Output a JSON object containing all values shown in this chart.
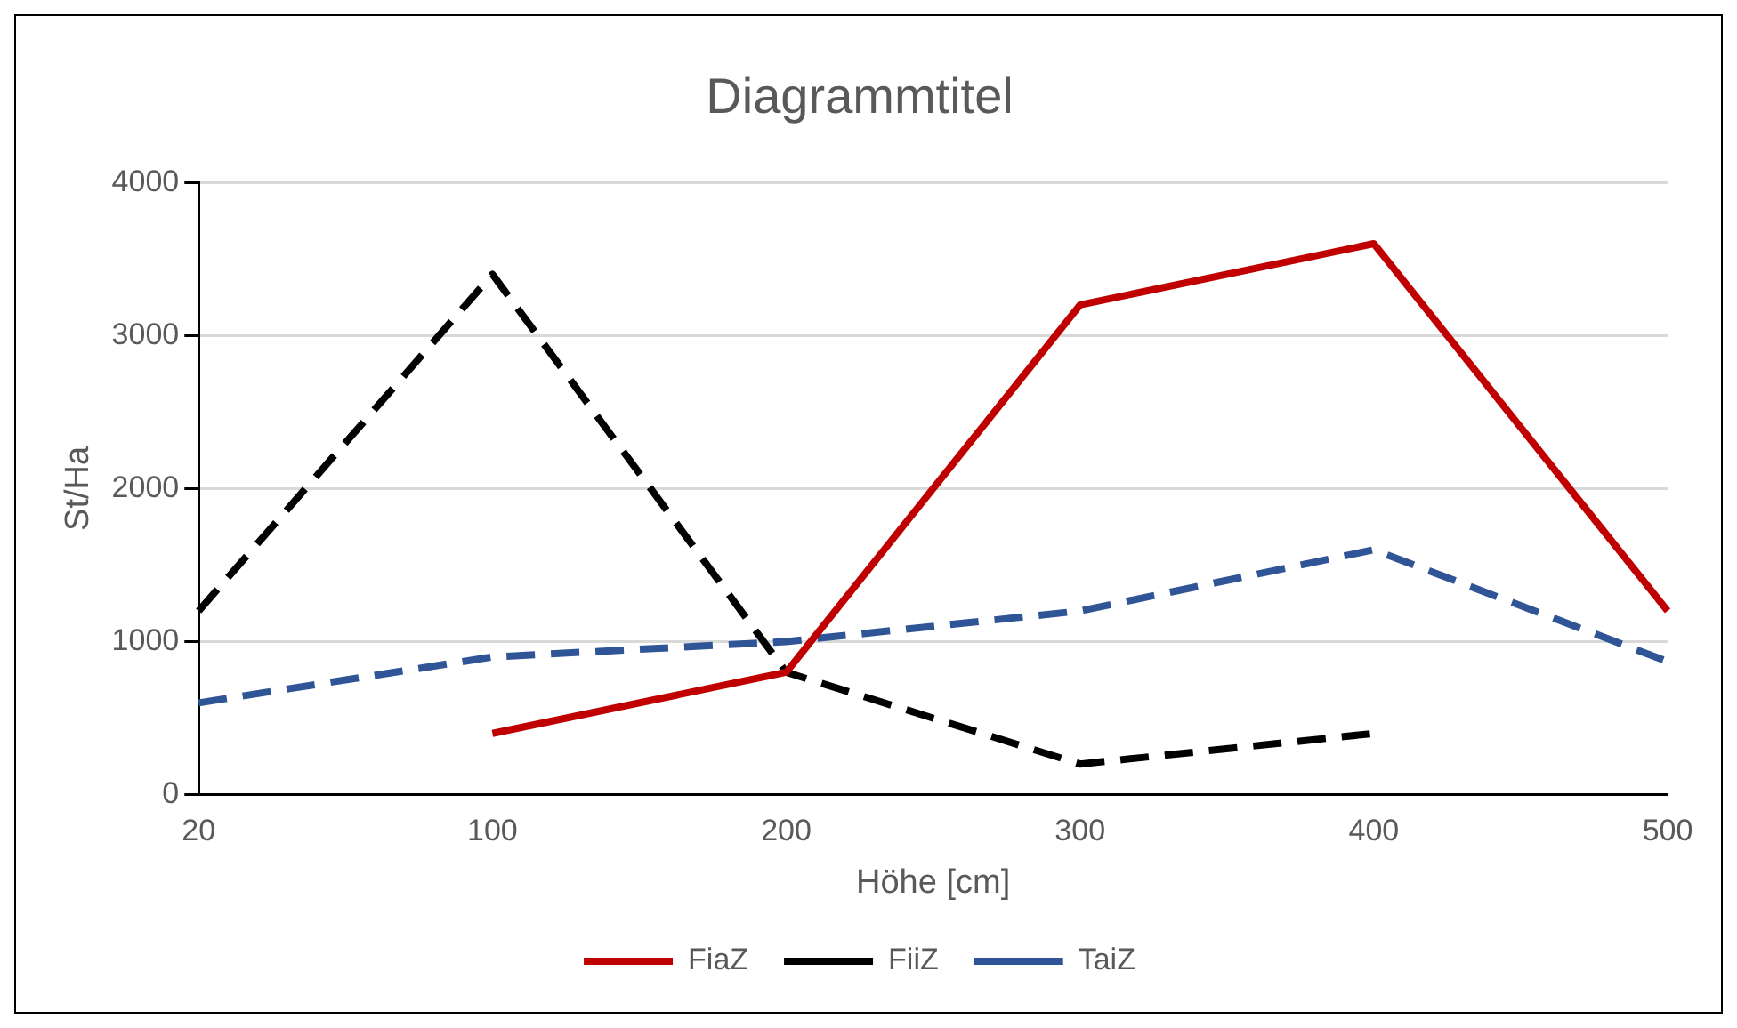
{
  "chart_data": {
    "type": "line",
    "title": "Diagrammtitel",
    "xlabel": "Höhe [cm]",
    "ylabel": "St/Ha",
    "categories": [
      "20",
      "100",
      "200",
      "300",
      "400",
      "500"
    ],
    "series": [
      {
        "name": "FiaZ",
        "color": "#c00000",
        "line_style": "solid",
        "values": [
          null,
          400,
          800,
          3200,
          3600,
          1200
        ]
      },
      {
        "name": "FiiZ",
        "color": "#000000",
        "line_style": "dashed",
        "values": [
          1200,
          3400,
          800,
          200,
          400,
          null
        ]
      },
      {
        "name": "TaiZ",
        "color": "#2f5597",
        "line_style": "dashed",
        "values": [
          600,
          900,
          1000,
          1200,
          1600,
          870
        ]
      }
    ],
    "ylim": [
      0,
      4000
    ],
    "yticks": [
      0,
      1000,
      2000,
      3000,
      4000
    ],
    "grid": "y",
    "legend": "bottom",
    "marker": "none"
  }
}
